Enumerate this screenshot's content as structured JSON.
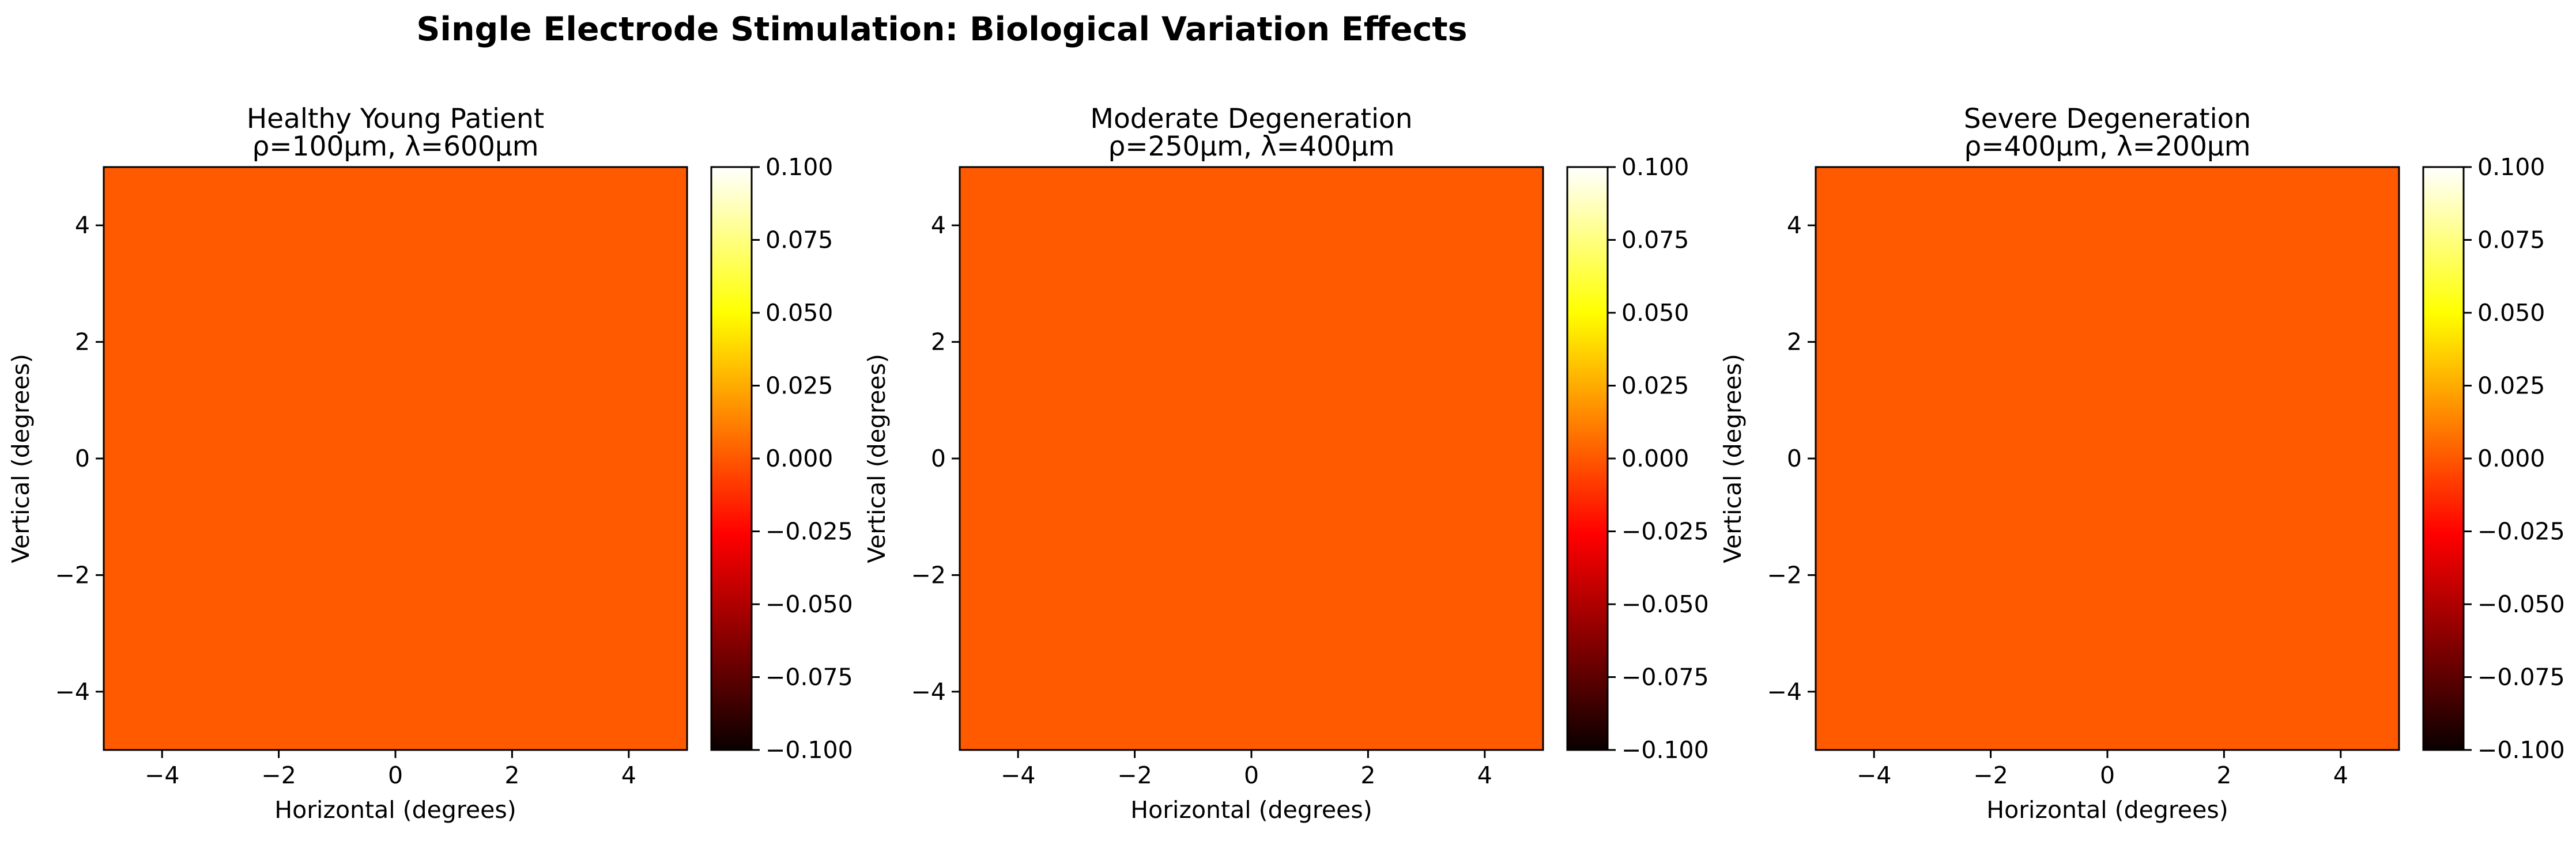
{
  "figure": {
    "suptitle": "Single Electrode Stimulation: Biological Variation Effects"
  },
  "chart_data": [
    {
      "type": "heatmap",
      "title": "Healthy Young Patient",
      "subtitle": "ρ=100μm, λ=600μm",
      "xlabel": "Horizontal (degrees)",
      "ylabel": "Vertical (degrees)",
      "xlim": [
        -5,
        5
      ],
      "ylim": [
        -5,
        5
      ],
      "xticks": [
        -4,
        -2,
        0,
        2,
        4
      ],
      "yticks": [
        -4,
        -2,
        0,
        2,
        4
      ],
      "values": [
        [
          0
        ]
      ],
      "colormap": "hot",
      "colorbar": {
        "min": -0.1,
        "max": 0.1,
        "ticks": [
          -0.1,
          -0.075,
          -0.05,
          -0.025,
          0,
          0.025,
          0.05,
          0.075,
          0.1
        ]
      },
      "fill_color": "#ff5a00",
      "grid": false
    },
    {
      "type": "heatmap",
      "title": "Moderate Degeneration",
      "subtitle": "ρ=250μm, λ=400μm",
      "xlabel": "Horizontal (degrees)",
      "ylabel": "Vertical (degrees)",
      "xlim": [
        -5,
        5
      ],
      "ylim": [
        -5,
        5
      ],
      "xticks": [
        -4,
        -2,
        0,
        2,
        4
      ],
      "yticks": [
        -4,
        -2,
        0,
        2,
        4
      ],
      "values": [
        [
          0
        ]
      ],
      "colormap": "hot",
      "colorbar": {
        "min": -0.1,
        "max": 0.1,
        "ticks": [
          -0.1,
          -0.075,
          -0.05,
          -0.025,
          0,
          0.025,
          0.05,
          0.075,
          0.1
        ]
      },
      "fill_color": "#ff5a00",
      "grid": false
    },
    {
      "type": "heatmap",
      "title": "Severe Degeneration",
      "subtitle": "ρ=400μm, λ=200μm",
      "xlabel": "Horizontal (degrees)",
      "ylabel": "Vertical (degrees)",
      "xlim": [
        -5,
        5
      ],
      "ylim": [
        -5,
        5
      ],
      "xticks": [
        -4,
        -2,
        0,
        2,
        4
      ],
      "yticks": [
        -4,
        -2,
        0,
        2,
        4
      ],
      "values": [
        [
          0
        ]
      ],
      "colormap": "hot",
      "colorbar": {
        "min": -0.1,
        "max": 0.1,
        "ticks": [
          -0.1,
          -0.075,
          -0.05,
          -0.025,
          0,
          0.025,
          0.05,
          0.075,
          0.1
        ]
      },
      "fill_color": "#ff5a00",
      "grid": false
    }
  ]
}
